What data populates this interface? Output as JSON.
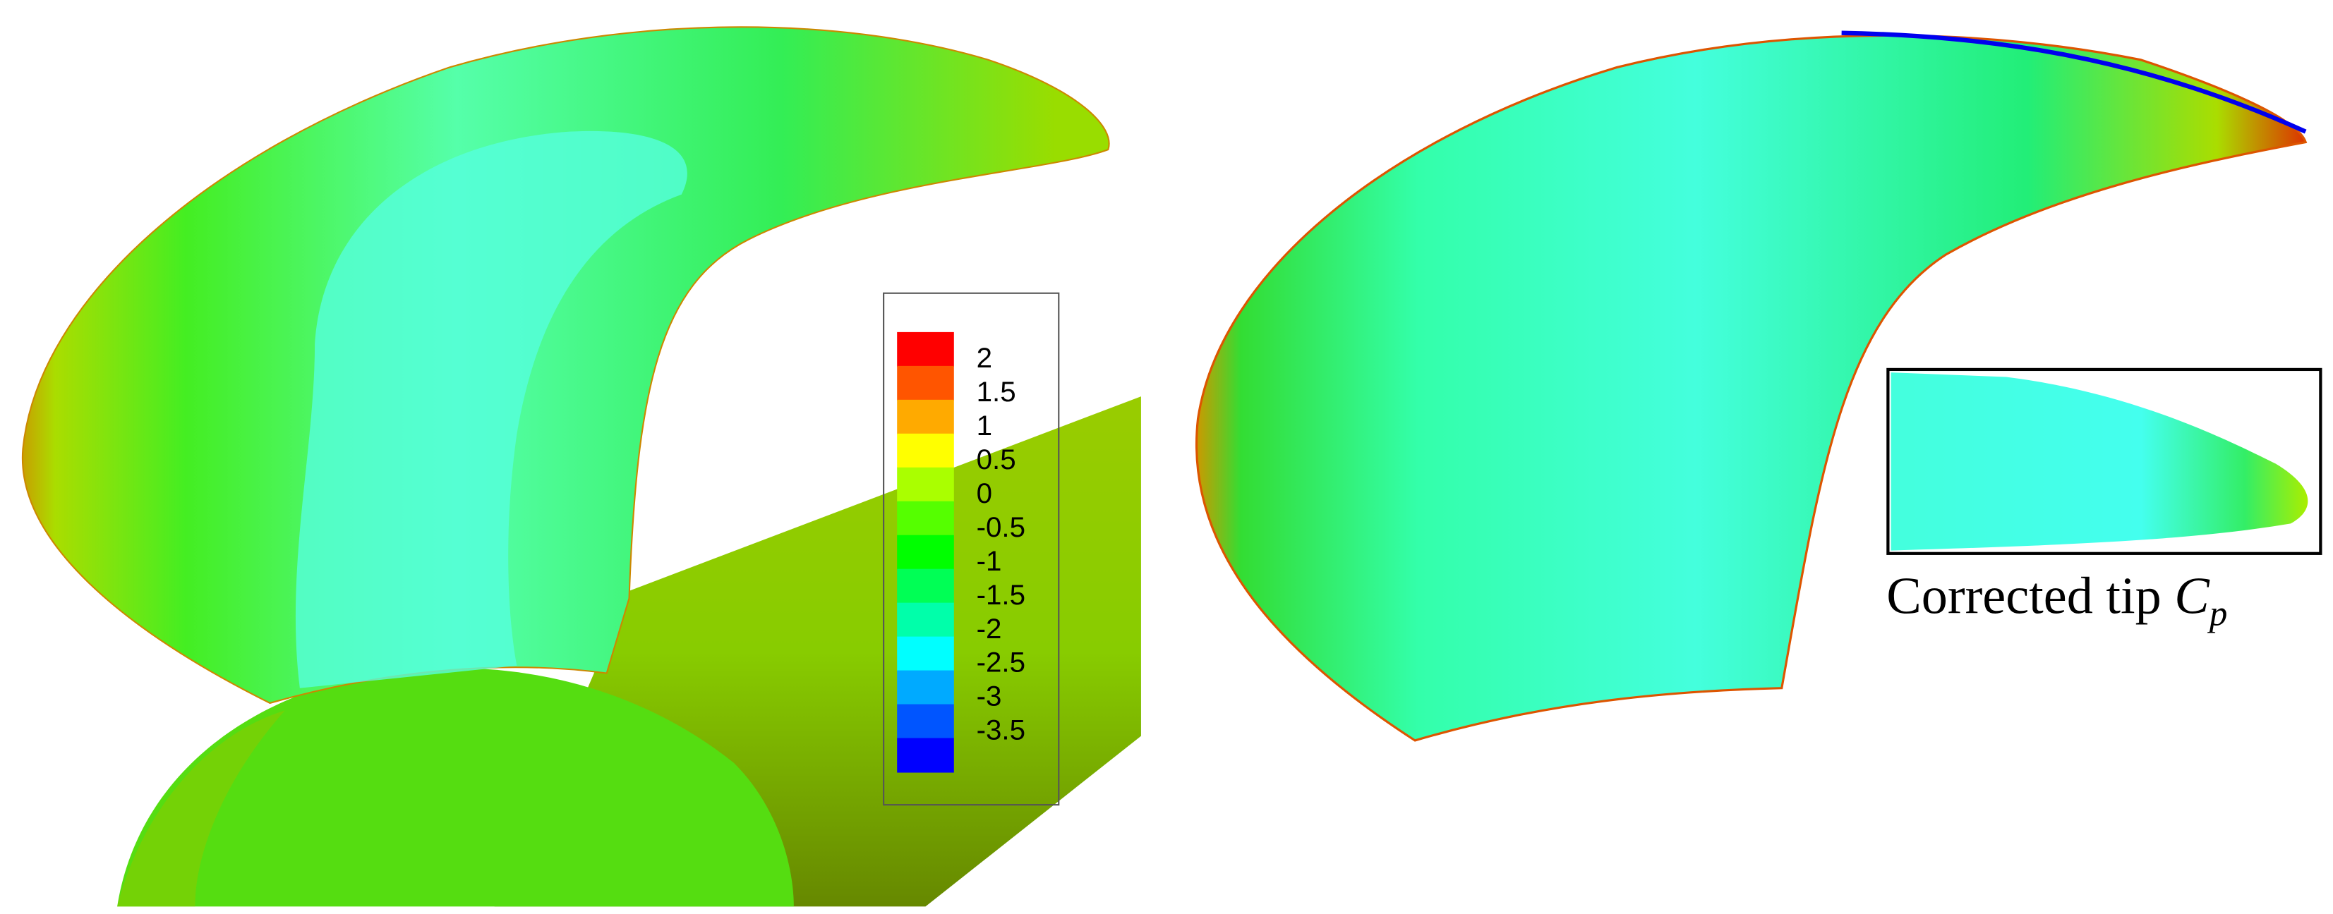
{
  "legend": {
    "labels": [
      "2",
      "1.5",
      "1",
      "0.5",
      "0",
      "-0.5",
      "-1",
      "-1.5",
      "-2",
      "-2.5",
      "-3",
      "-3.5"
    ],
    "colors": [
      "#ff0000",
      "#ff5500",
      "#ffaa00",
      "#ffff00",
      "#aaff00",
      "#55ff00",
      "#00ff00",
      "#00ff55",
      "#00ffaa",
      "#00ffff",
      "#00aaff",
      "#0055ff",
      "#0000ff"
    ]
  },
  "caption": {
    "text": "Corrected tip ",
    "symbol": "C",
    "subscript": "p"
  }
}
